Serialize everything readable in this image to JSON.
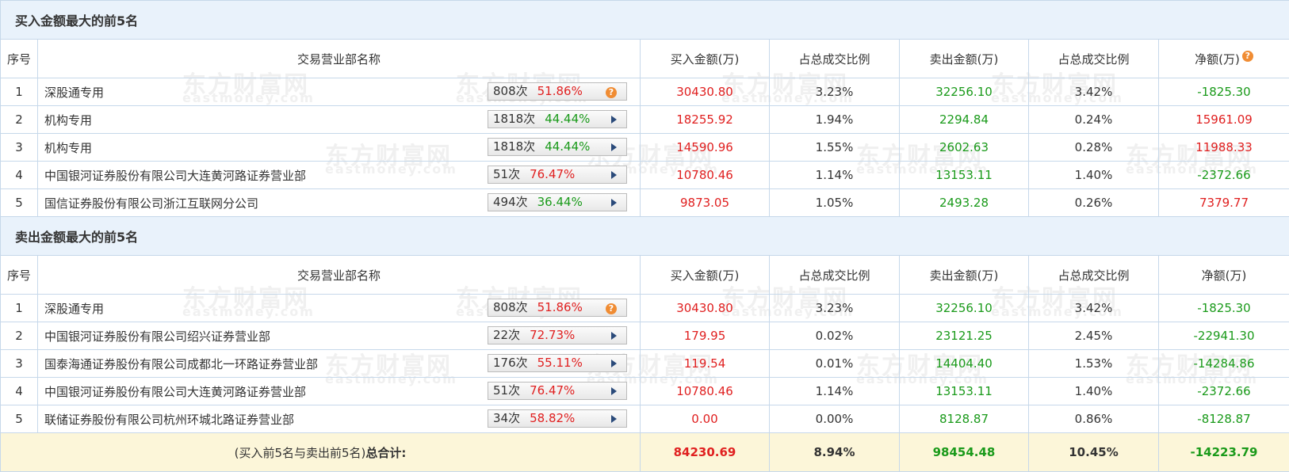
{
  "sections": [
    {
      "title": "买入金额最大的前5名",
      "columns": [
        "序号",
        "交易营业部名称",
        "买入金额(万)",
        "占总成交比例",
        "卖出金额(万)",
        "占总成交比例",
        "净额(万)"
      ],
      "rows": [
        {
          "rank": "1",
          "name": "深股通专用",
          "count": "808次",
          "ratio": "51.86%",
          "buy": "30430.80",
          "buy_pct": "3.23%",
          "sell": "32256.10",
          "sell_pct": "3.42%",
          "net": "-1825.30"
        },
        {
          "rank": "2",
          "name": "机构专用",
          "count": "1818次",
          "ratio": "44.44%",
          "buy": "18255.92",
          "buy_pct": "1.94%",
          "sell": "2294.84",
          "sell_pct": "0.24%",
          "net": "15961.09"
        },
        {
          "rank": "3",
          "name": "机构专用",
          "count": "1818次",
          "ratio": "44.44%",
          "buy": "14590.96",
          "buy_pct": "1.55%",
          "sell": "2602.63",
          "sell_pct": "0.28%",
          "net": "11988.33"
        },
        {
          "rank": "4",
          "name": "中国银河证券股份有限公司大连黄河路证券营业部",
          "count": "51次",
          "ratio": "76.47%",
          "buy": "10780.46",
          "buy_pct": "1.14%",
          "sell": "13153.11",
          "sell_pct": "1.40%",
          "net": "-2372.66"
        },
        {
          "rank": "5",
          "name": "国信证券股份有限公司浙江互联网分公司",
          "count": "494次",
          "ratio": "36.44%",
          "buy": "9873.05",
          "buy_pct": "1.05%",
          "sell": "2493.28",
          "sell_pct": "0.26%",
          "net": "7379.77"
        }
      ]
    },
    {
      "title": "卖出金额最大的前5名",
      "columns": [
        "序号",
        "交易营业部名称",
        "买入金额(万)",
        "占总成交比例",
        "卖出金额(万)",
        "占总成交比例",
        "净额(万)"
      ],
      "rows": [
        {
          "rank": "1",
          "name": "深股通专用",
          "count": "808次",
          "ratio": "51.86%",
          "buy": "30430.80",
          "buy_pct": "3.23%",
          "sell": "32256.10",
          "sell_pct": "3.42%",
          "net": "-1825.30"
        },
        {
          "rank": "2",
          "name": "中国银河证券股份有限公司绍兴证券营业部",
          "count": "22次",
          "ratio": "72.73%",
          "buy": "179.95",
          "buy_pct": "0.02%",
          "sell": "23121.25",
          "sell_pct": "2.45%",
          "net": "-22941.30"
        },
        {
          "rank": "3",
          "name": "国泰海通证券股份有限公司成都北一环路证券营业部",
          "count": "176次",
          "ratio": "55.11%",
          "buy": "119.54",
          "buy_pct": "0.01%",
          "sell": "14404.40",
          "sell_pct": "1.53%",
          "net": "-14284.86"
        },
        {
          "rank": "4",
          "name": "中国银河证券股份有限公司大连黄河路证券营业部",
          "count": "51次",
          "ratio": "76.47%",
          "buy": "10780.46",
          "buy_pct": "1.14%",
          "sell": "13153.11",
          "sell_pct": "1.40%",
          "net": "-2372.66"
        },
        {
          "rank": "5",
          "name": "联储证券股份有限公司杭州环城北路证券营业部",
          "count": "34次",
          "ratio": "58.82%",
          "buy": "0.00",
          "buy_pct": "0.00%",
          "sell": "8128.87",
          "sell_pct": "0.86%",
          "net": "-8128.87"
        }
      ]
    }
  ],
  "total": {
    "label": "(买入前5名与卖出前5名)",
    "label_bold": "总合计:",
    "buy": "84230.69",
    "buy_pct": "8.94%",
    "sell": "98454.48",
    "sell_pct": "10.45%",
    "net": "-14223.79"
  },
  "watermark": {
    "brand": "东方财富网",
    "site": "eastmoney.com"
  }
}
